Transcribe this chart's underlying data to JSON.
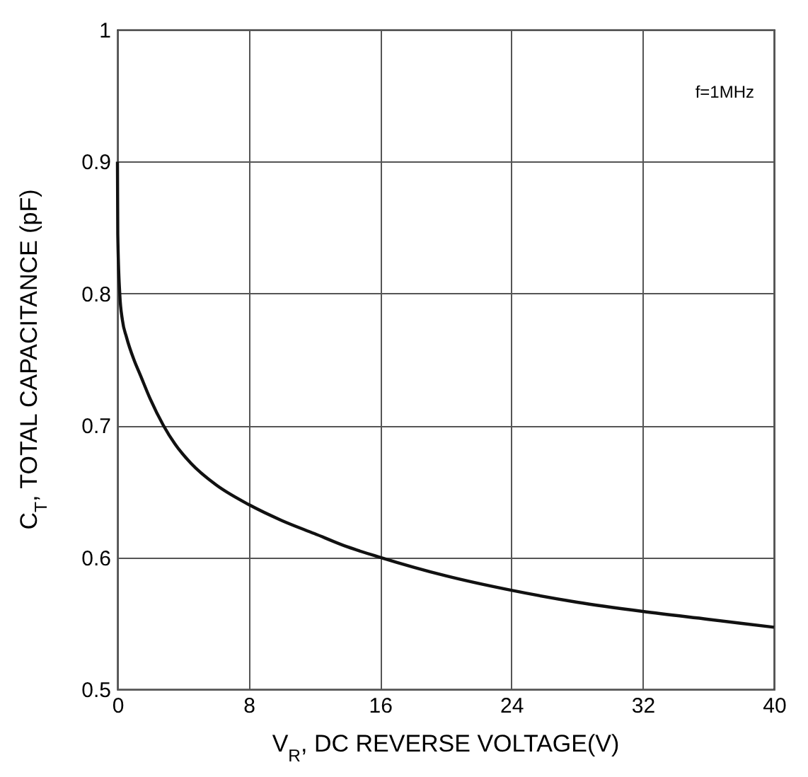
{
  "chart_data": {
    "type": "line",
    "xlabel": "V$_{R}$, DC REVERSE VOLTAGE(V)",
    "ylabel": "C$_{T}$, TOTAL CAPACITANCE (pF)",
    "annotations": [
      "f=1MHz"
    ],
    "x": [
      0,
      0.02,
      0.14,
      0.3,
      0.55,
      1,
      1.4,
      2,
      2.8,
      3.5,
      4.5,
      6,
      8,
      10,
      12,
      14,
      16,
      20,
      24,
      28,
      32,
      36,
      40
    ],
    "series": [
      {
        "color": "#111111",
        "values": [
          0.9,
          0.845,
          0.8,
          0.78,
          0.767,
          0.75,
          0.738,
          0.72,
          0.7,
          0.686,
          0.671,
          0.655,
          0.64,
          0.628,
          0.618,
          0.608,
          0.6,
          0.586,
          0.575,
          0.566,
          0.559,
          0.553,
          0.547
        ]
      }
    ],
    "xlim": [
      0,
      40
    ],
    "xticks": [
      0,
      8,
      16,
      24,
      32,
      40
    ],
    "ylim": [
      0.5,
      1
    ],
    "yticks": [
      0.5,
      0.6,
      0.7,
      0.8,
      0.9,
      {
        "value": 1,
        "label": "1"
      }
    ],
    "grid": true,
    "marker": "none",
    "line_style": "solid"
  }
}
